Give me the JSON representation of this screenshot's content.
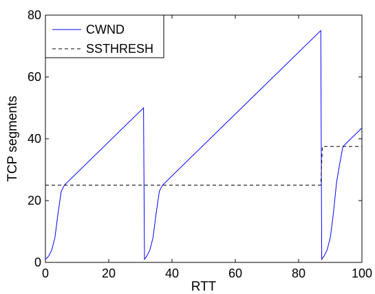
{
  "chart_data": {
    "type": "line",
    "title": "",
    "xlabel": "RTT",
    "ylabel": "TCP segments",
    "xlim": [
      0,
      100
    ],
    "ylim": [
      0,
      80
    ],
    "xticks": [
      "0",
      "20",
      "40",
      "60",
      "80",
      "100"
    ],
    "yticks": [
      "0",
      "20",
      "40",
      "60",
      "80"
    ],
    "grid": false,
    "legend_position": "top-left",
    "series": [
      {
        "name": "CWND",
        "color": "#0000ff",
        "style": "solid",
        "x": [
          0,
          1,
          2,
          3,
          4,
          5,
          6,
          31,
          31.3,
          32,
          33,
          34,
          35,
          36,
          37,
          87,
          87.3,
          88,
          89,
          90,
          91,
          92,
          93,
          94,
          100
        ],
        "y": [
          1,
          2,
          4,
          8,
          16,
          23,
          25,
          50,
          1,
          2,
          4,
          8,
          16,
          23,
          25,
          75,
          1,
          2,
          4,
          8,
          16,
          26,
          32,
          37.5,
          43.5
        ]
      },
      {
        "name": "SSTHRESH",
        "color": "#000000",
        "style": "dashed",
        "x": [
          0,
          87,
          87.5,
          100
        ],
        "y": [
          25,
          25,
          37.5,
          37.5
        ]
      }
    ]
  }
}
